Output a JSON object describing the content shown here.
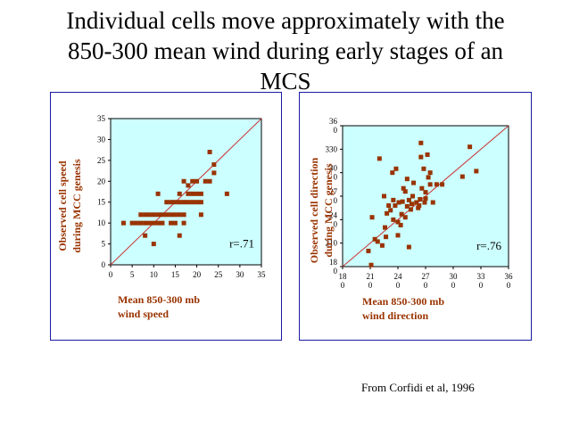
{
  "title_lines": [
    "Individual cells move approximately with the",
    "850-300 mean wind during early stages of an",
    "MCS"
  ],
  "credit": "From Corfidi et al, 1996",
  "colors": {
    "plot_bg": "#ccffff",
    "marker": "#993300",
    "line": "#cc3333",
    "label": "#993300",
    "panel_border": "#1a1aa0"
  },
  "chart_data": [
    {
      "type": "scatter",
      "xlabel": [
        "Mean 850-300 mb",
        "wind speed"
      ],
      "ylabel": [
        "Observed cell speed",
        "during MCC genesis"
      ],
      "xlim": [
        0,
        35
      ],
      "ylim": [
        0,
        35
      ],
      "xticks": [
        {
          "v": 0,
          "label": "0"
        },
        {
          "v": 5,
          "label": "5"
        },
        {
          "v": 10,
          "label": "10"
        },
        {
          "v": 15,
          "label": "15"
        },
        {
          "v": 20,
          "label": "20"
        },
        {
          "v": 25,
          "label": "25"
        },
        {
          "v": 30,
          "label": "30"
        },
        {
          "v": 35,
          "label": "35"
        }
      ],
      "yticks": [
        {
          "v": 0,
          "label": "0"
        },
        {
          "v": 5,
          "label": "5"
        },
        {
          "v": 10,
          "label": "10"
        },
        {
          "v": 15,
          "label": "15"
        },
        {
          "v": 20,
          "label": "20"
        },
        {
          "v": 25,
          "label": "25"
        },
        {
          "v": 30,
          "label": "30"
        },
        {
          "v": 35,
          "label": "35"
        }
      ],
      "annotation": "r=.71",
      "reference_line": [
        [
          0,
          0
        ],
        [
          35,
          35
        ]
      ],
      "points": [
        [
          3,
          10
        ],
        [
          5,
          10
        ],
        [
          6,
          10
        ],
        [
          7,
          12
        ],
        [
          7,
          10
        ],
        [
          8,
          12
        ],
        [
          8,
          7
        ],
        [
          8,
          10
        ],
        [
          9,
          12
        ],
        [
          9,
          10
        ],
        [
          10,
          12
        ],
        [
          10,
          10
        ],
        [
          10,
          5
        ],
        [
          11,
          12
        ],
        [
          11,
          10
        ],
        [
          11,
          17
        ],
        [
          12,
          10
        ],
        [
          12,
          12
        ],
        [
          13,
          12
        ],
        [
          13,
          15
        ],
        [
          14,
          12
        ],
        [
          14,
          15
        ],
        [
          14,
          10
        ],
        [
          15,
          12
        ],
        [
          15,
          15
        ],
        [
          15,
          10
        ],
        [
          16,
          15
        ],
        [
          16,
          17
        ],
        [
          16,
          12
        ],
        [
          16,
          7
        ],
        [
          17,
          15
        ],
        [
          17,
          12
        ],
        [
          17,
          20
        ],
        [
          17,
          10
        ],
        [
          18,
          15
        ],
        [
          18,
          19
        ],
        [
          18,
          17
        ],
        [
          19,
          15
        ],
        [
          19,
          20
        ],
        [
          19,
          17
        ],
        [
          20,
          15
        ],
        [
          20,
          17
        ],
        [
          20,
          20
        ],
        [
          21,
          15
        ],
        [
          21,
          17
        ],
        [
          21,
          12
        ],
        [
          22,
          20
        ],
        [
          23,
          20
        ],
        [
          23,
          27
        ],
        [
          24,
          22
        ],
        [
          24,
          24
        ],
        [
          27,
          17
        ]
      ]
    },
    {
      "type": "scatter",
      "xlabel": [
        "Mean 850-300 mb",
        "wind direction"
      ],
      "ylabel": [
        "Observed cell direction",
        "during MCC genesis"
      ],
      "xlim": [
        180,
        360
      ],
      "ylim": [
        180,
        360
      ],
      "xticks": [
        {
          "v": 180,
          "label": "18\n0"
        },
        {
          "v": 210,
          "label": "21\n0"
        },
        {
          "v": 240,
          "label": "24\n0"
        },
        {
          "v": 270,
          "label": "27\n0"
        },
        {
          "v": 300,
          "label": "30\n0"
        },
        {
          "v": 330,
          "label": "33\n0"
        },
        {
          "v": 360,
          "label": "36\n0"
        }
      ],
      "yticks": [
        {
          "v": 180,
          "label": "18\n0"
        },
        {
          "v": 210,
          "label": "210"
        },
        {
          "v": 240,
          "label": "24\n0"
        },
        {
          "v": 270,
          "label": "27\n0"
        },
        {
          "v": 300,
          "label": "30\n0"
        },
        {
          "v": 330,
          "label": "330"
        },
        {
          "v": 360,
          "label": "36\n0"
        }
      ],
      "annotation": "r=.76",
      "reference_line": [
        [
          180,
          180
        ],
        [
          360,
          360
        ]
      ],
      "points": [
        [
          211,
          182
        ],
        [
          208,
          200
        ],
        [
          212,
          243
        ],
        [
          215,
          215
        ],
        [
          218,
          212
        ],
        [
          220,
          318
        ],
        [
          223,
          207
        ],
        [
          225,
          270
        ],
        [
          226,
          230
        ],
        [
          227,
          218
        ],
        [
          228,
          248
        ],
        [
          230,
          258
        ],
        [
          232,
          252
        ],
        [
          234,
          300
        ],
        [
          235,
          240
        ],
        [
          235,
          265
        ],
        [
          237,
          258
        ],
        [
          238,
          305
        ],
        [
          240,
          220
        ],
        [
          240,
          237
        ],
        [
          241,
          262
        ],
        [
          243,
          233
        ],
        [
          244,
          247
        ],
        [
          245,
          263
        ],
        [
          246,
          280
        ],
        [
          248,
          243
        ],
        [
          248,
          276
        ],
        [
          250,
          257
        ],
        [
          250,
          292
        ],
        [
          252,
          205
        ],
        [
          252,
          265
        ],
        [
          254,
          253
        ],
        [
          255,
          260
        ],
        [
          256,
          270
        ],
        [
          257,
          287
        ],
        [
          260,
          262
        ],
        [
          262,
          255
        ],
        [
          263,
          258
        ],
        [
          264,
          266
        ],
        [
          265,
          338
        ],
        [
          265,
          320
        ],
        [
          266,
          280
        ],
        [
          268,
          305
        ],
        [
          269,
          262
        ],
        [
          270,
          267
        ],
        [
          270,
          275
        ],
        [
          272,
          323
        ],
        [
          273,
          294
        ],
        [
          275,
          285
        ],
        [
          275,
          300
        ],
        [
          278,
          262
        ],
        [
          282,
          285
        ],
        [
          288,
          285
        ],
        [
          310,
          295
        ],
        [
          318,
          333
        ],
        [
          325,
          302
        ]
      ]
    }
  ]
}
